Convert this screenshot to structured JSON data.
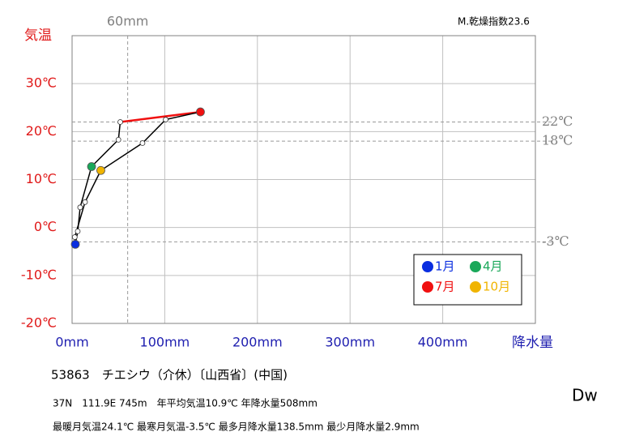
{
  "chart_data": {
    "type": "climograph",
    "dryness_index": "M.乾燥指数23.6",
    "climate_class": "Dw",
    "y_axis_label": "気温",
    "x_axis_label": "降水量",
    "categories": [
      "1月",
      null,
      null,
      "4月",
      null,
      null,
      "7月",
      null,
      null,
      "10月",
      null,
      null
    ],
    "x": [
      3.5,
      6.1,
      8.7,
      21,
      50,
      52,
      138.5,
      101,
      76,
      31,
      14,
      2.9
    ],
    "y": [
      -3.5,
      -0.8,
      4.2,
      12.7,
      18.3,
      22.0,
      24.1,
      22.5,
      17.6,
      11.9,
      5.3,
      -2.0
    ],
    "point_colors": [
      "#0a2ee0",
      null,
      null,
      "#1aa85a",
      null,
      null,
      "#f01010",
      null,
      null,
      "#f0b400",
      null,
      null
    ],
    "segment_colors": [
      "#000000",
      "#000000",
      "#000000",
      "#000000",
      "#000000",
      "#f01010",
      "#000000",
      "#000000",
      "#000000",
      "#000000",
      "#000000",
      "#000000"
    ],
    "xlim": [
      0,
      500
    ],
    "ylim": [
      -20,
      40
    ],
    "xticks": [
      {
        "value": 0,
        "label": "0mm"
      },
      {
        "value": 100,
        "label": "100mm"
      },
      {
        "value": 200,
        "label": "200mm"
      },
      {
        "value": 300,
        "label": "300mm"
      },
      {
        "value": 400,
        "label": "400mm"
      }
    ],
    "yticks": [
      {
        "value": -20,
        "label": "-20℃"
      },
      {
        "value": -10,
        "label": "-10℃"
      },
      {
        "value": 0,
        "label": "0℃"
      },
      {
        "value": 10,
        "label": "10℃"
      },
      {
        "value": 20,
        "label": "20℃"
      },
      {
        "value": 30,
        "label": "30℃"
      }
    ],
    "ref_x": [
      {
        "value": 60,
        "label": "60mm"
      }
    ],
    "ref_y": [
      {
        "value": 22,
        "label": "22℃"
      },
      {
        "value": 18,
        "label": "18℃"
      },
      {
        "value": -3,
        "label": "-3℃"
      }
    ],
    "grid": true,
    "station": "53863　チエシウ（介休）〔山西省〕(中国)",
    "info_line1": "37N　111.9E 745m　年平均気温10.9℃ 年降水量508mm",
    "info_line2": "最暖月気温24.1℃ 最寒月気温-3.5℃ 最多月降水量138.5mm 最少月降水量2.9mm"
  }
}
